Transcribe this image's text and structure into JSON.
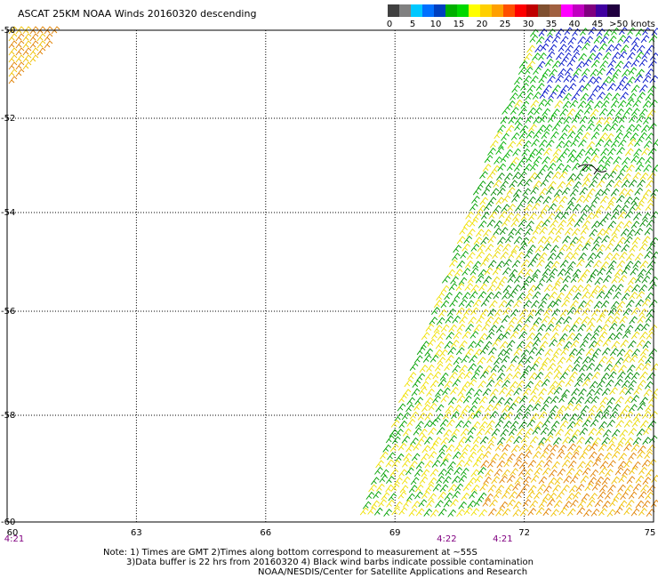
{
  "title": "ASCAT 25KM NOAA Winds 20160320 descending",
  "legend": {
    "unit_label": ">50 knots",
    "ticks": [
      "0",
      "5",
      "10",
      "15",
      "20",
      "25",
      "30",
      "35",
      "40",
      "45"
    ],
    "colors": [
      "#404040",
      "#808080",
      "#00c8ff",
      "#0070ff",
      "#0040c0",
      "#00b000",
      "#00d800",
      "#ffff00",
      "#ffd000",
      "#ffa000",
      "#ff5000",
      "#ff0000",
      "#c00000",
      "#805030",
      "#a06040",
      "#ff00ff",
      "#c000c0",
      "#800080",
      "#4000a0",
      "#200040"
    ]
  },
  "map": {
    "lat_labels": [
      "-50",
      "-52",
      "-54",
      "-56",
      "-58",
      "-60"
    ],
    "lon_labels": [
      "60",
      "63",
      "66",
      "69",
      "72",
      "75"
    ],
    "time_labels": [
      {
        "text": "4:21",
        "lon": 60
      },
      {
        "text": "4:22",
        "lon": 70.2
      },
      {
        "text": "4:21",
        "lon": 71.5
      }
    ]
  },
  "notes": [
    "Note: 1) Times are GMT 2)Times along bottom correspond to measurement at ~55S",
    "3)Data buffer is 22 hrs from 20160320 4) Black wind barbs indicate possible contamination",
    "NOAA/NESDIS/Center for Satellite Applications and Research"
  ]
}
